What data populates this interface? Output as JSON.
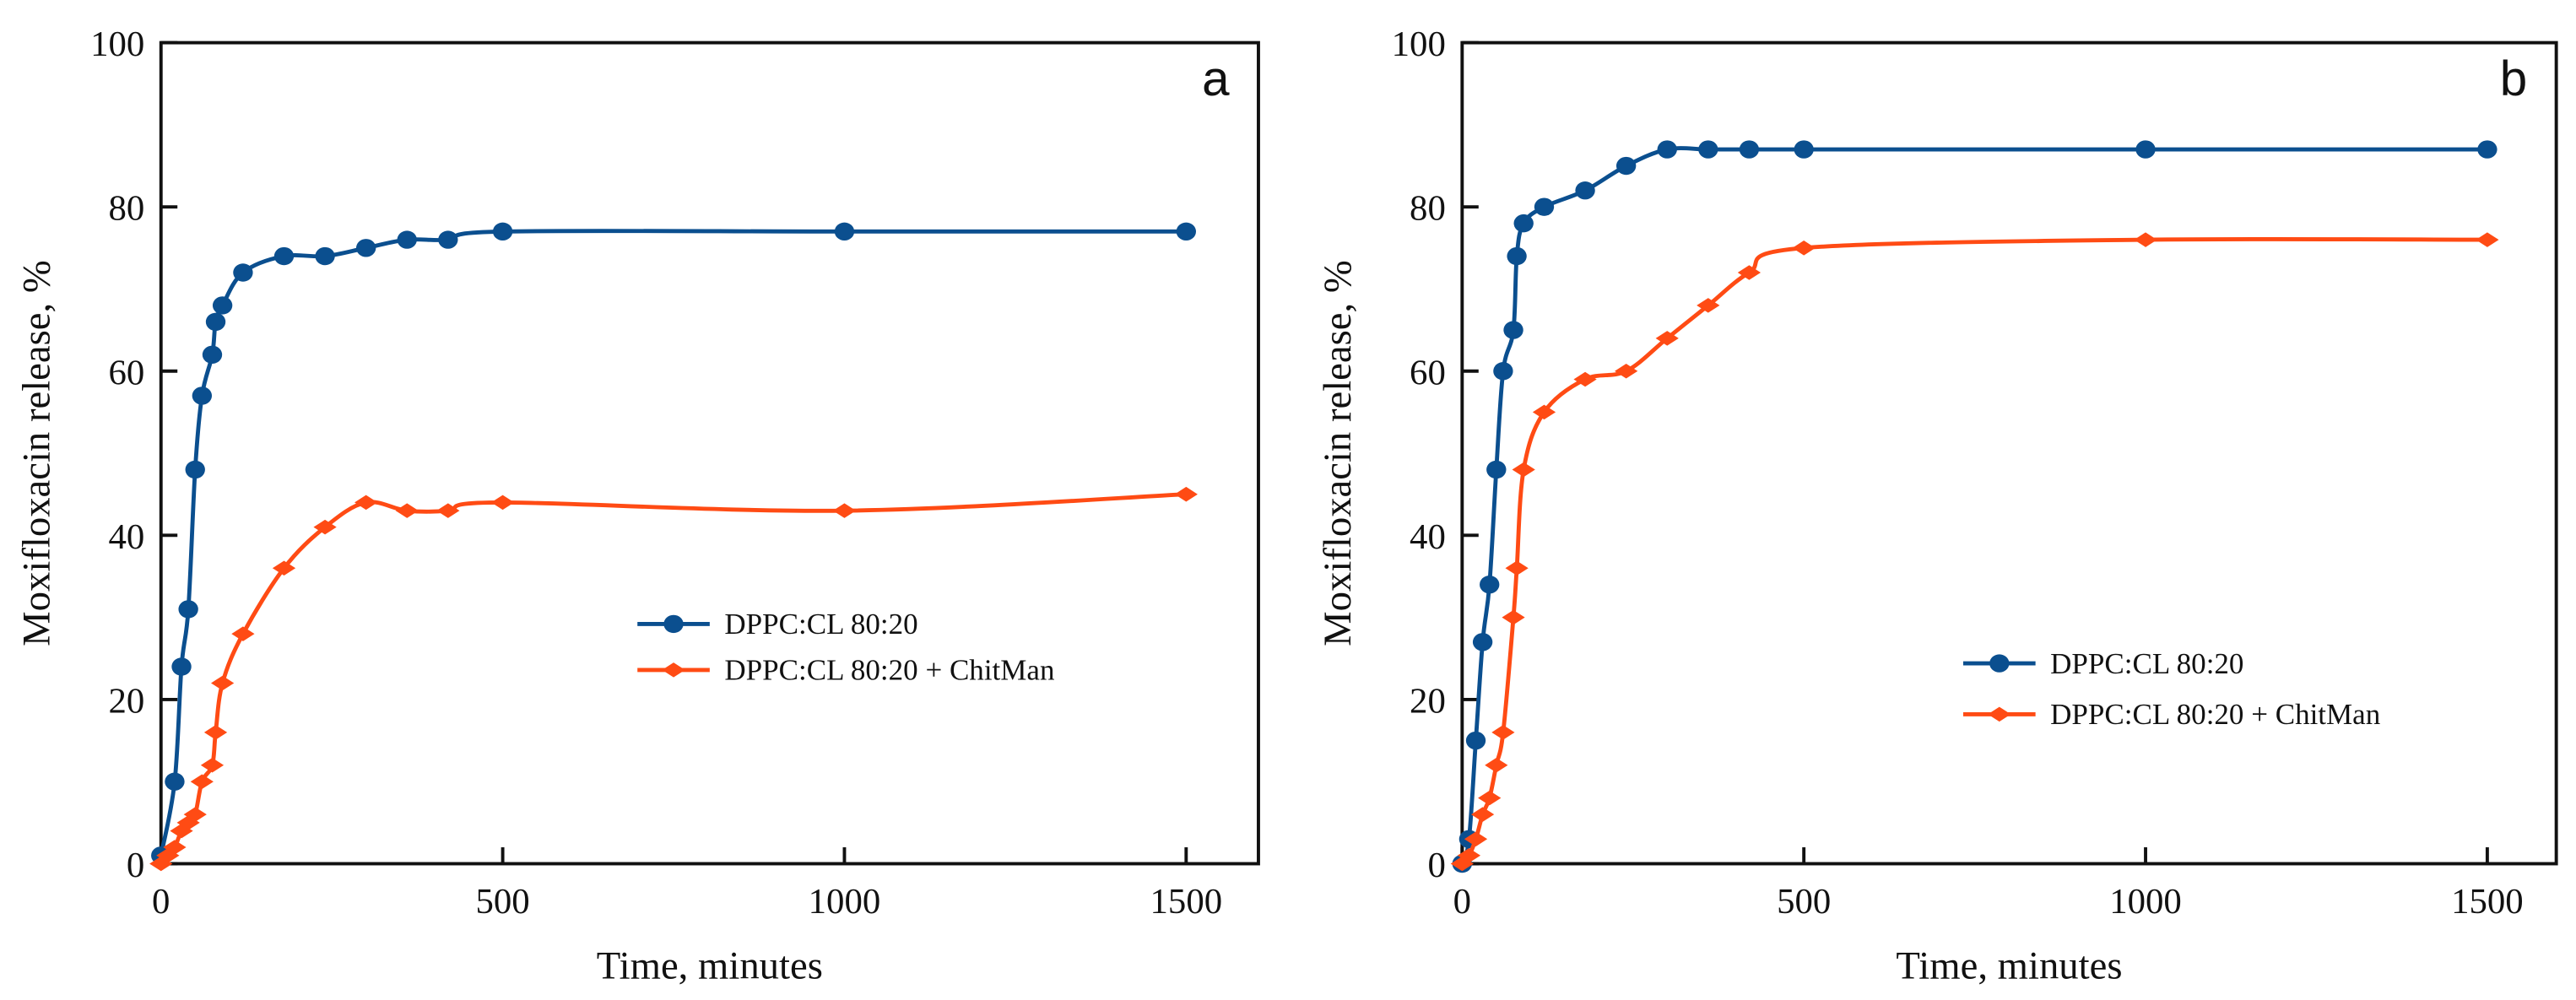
{
  "chart_data": [
    {
      "type": "line",
      "panel_label": "a",
      "xlabel": "Time, minutes",
      "ylabel": "Moxifloxacin release, %",
      "xlim": [
        0,
        1600
      ],
      "ylim": [
        0,
        100
      ],
      "xticks": [
        0,
        500,
        1000,
        1500
      ],
      "yticks": [
        0,
        20,
        40,
        60,
        80,
        100
      ],
      "legend_position": "center-right",
      "series": [
        {
          "name": "DPPC:CL 80:20",
          "color": "#0b4f8f",
          "marker": "circle",
          "x": [
            0,
            20,
            30,
            40,
            50,
            60,
            75,
            80,
            90,
            120,
            180,
            240,
            300,
            360,
            420,
            500,
            1000,
            1500
          ],
          "y": [
            1,
            10,
            24,
            31,
            48,
            57,
            62,
            66,
            68,
            72,
            74,
            74,
            75,
            76,
            76,
            77,
            77,
            77
          ]
        },
        {
          "name": "DPPC:CL 80:20 + ChitMan",
          "color": "#ff4b14",
          "marker": "diamond",
          "x": [
            0,
            10,
            20,
            30,
            40,
            50,
            60,
            75,
            80,
            90,
            120,
            180,
            240,
            300,
            360,
            420,
            500,
            1000,
            1500
          ],
          "y": [
            0,
            1,
            2,
            4,
            5,
            6,
            10,
            12,
            16,
            22,
            28,
            36,
            41,
            44,
            43,
            43,
            44,
            43,
            45
          ]
        }
      ]
    },
    {
      "type": "line",
      "panel_label": "b",
      "xlabel": "Time, minutes",
      "ylabel": "Moxifloxacin release, %",
      "xlim": [
        0,
        1600
      ],
      "ylim": [
        0,
        100
      ],
      "xticks": [
        0,
        500,
        1000,
        1500
      ],
      "yticks": [
        0,
        20,
        40,
        60,
        80,
        100
      ],
      "legend_position": "center-right",
      "series": [
        {
          "name": "DPPC:CL 80:20",
          "color": "#0b4f8f",
          "marker": "circle",
          "x": [
            0,
            10,
            20,
            30,
            40,
            50,
            60,
            75,
            80,
            90,
            120,
            180,
            240,
            300,
            360,
            420,
            500,
            1000,
            1500
          ],
          "y": [
            0,
            3,
            15,
            27,
            34,
            48,
            60,
            65,
            74,
            78,
            80,
            82,
            85,
            87,
            87,
            87,
            87,
            87,
            87
          ]
        },
        {
          "name": "DPPC:CL 80:20 + ChitMan",
          "color": "#ff4b14",
          "marker": "diamond",
          "x": [
            0,
            10,
            20,
            30,
            40,
            50,
            60,
            75,
            80,
            90,
            120,
            180,
            240,
            300,
            360,
            420,
            500,
            1000,
            1500
          ],
          "y": [
            0,
            1,
            3,
            6,
            8,
            12,
            16,
            30,
            36,
            48,
            55,
            59,
            60,
            64,
            68,
            72,
            75,
            76,
            76
          ]
        }
      ]
    }
  ]
}
